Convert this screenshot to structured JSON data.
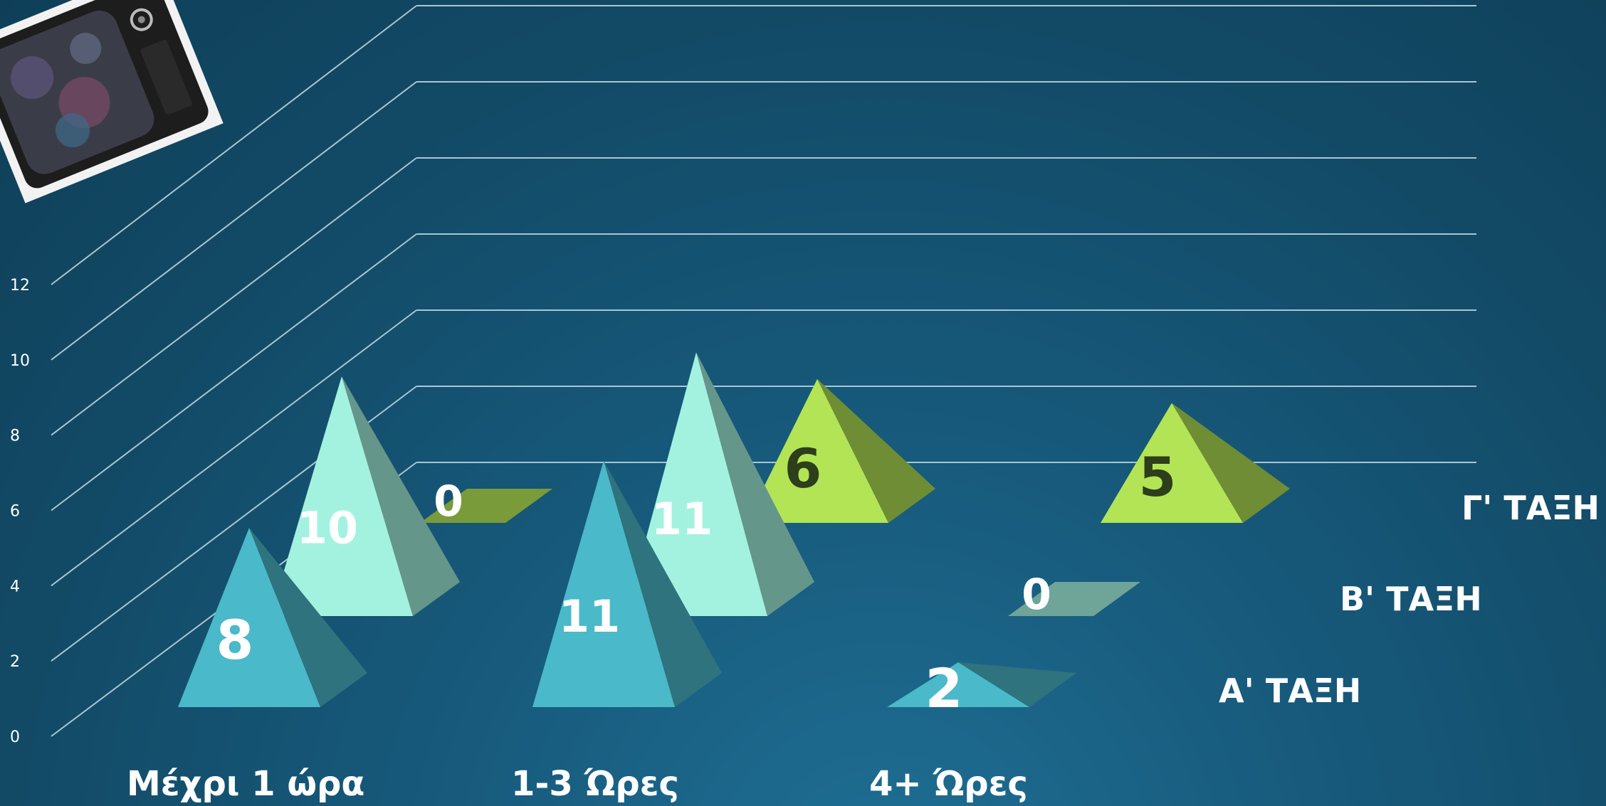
{
  "chart_data": {
    "type": "bar",
    "shape": "pyramid-3d",
    "categories": [
      "Μέχρι 1 ώρα",
      "1-3 Ώρες",
      "4+ Ώρες"
    ],
    "series": [
      {
        "name": "Α' ΤΑΞΗ",
        "values": [
          8,
          11,
          2
        ],
        "color": "#4ab9c9"
      },
      {
        "name": "Β' ΤΑΞΗ",
        "values": [
          10,
          11,
          0
        ],
        "color": "#a3f2df"
      },
      {
        "name": "Γ' ΤΑΞΗ",
        "values": [
          0,
          6,
          5
        ],
        "color": "#b2e455"
      }
    ],
    "y_ticks": [
      "0",
      "2",
      "4",
      "6",
      "8",
      "10",
      "12"
    ],
    "ylim": [
      0,
      12
    ],
    "grid": true,
    "legend": "right, as depth-row labels",
    "title": "",
    "xlabel": "",
    "ylabel": ""
  },
  "decoration": {
    "icon": "retro-tv-photo-icon"
  }
}
